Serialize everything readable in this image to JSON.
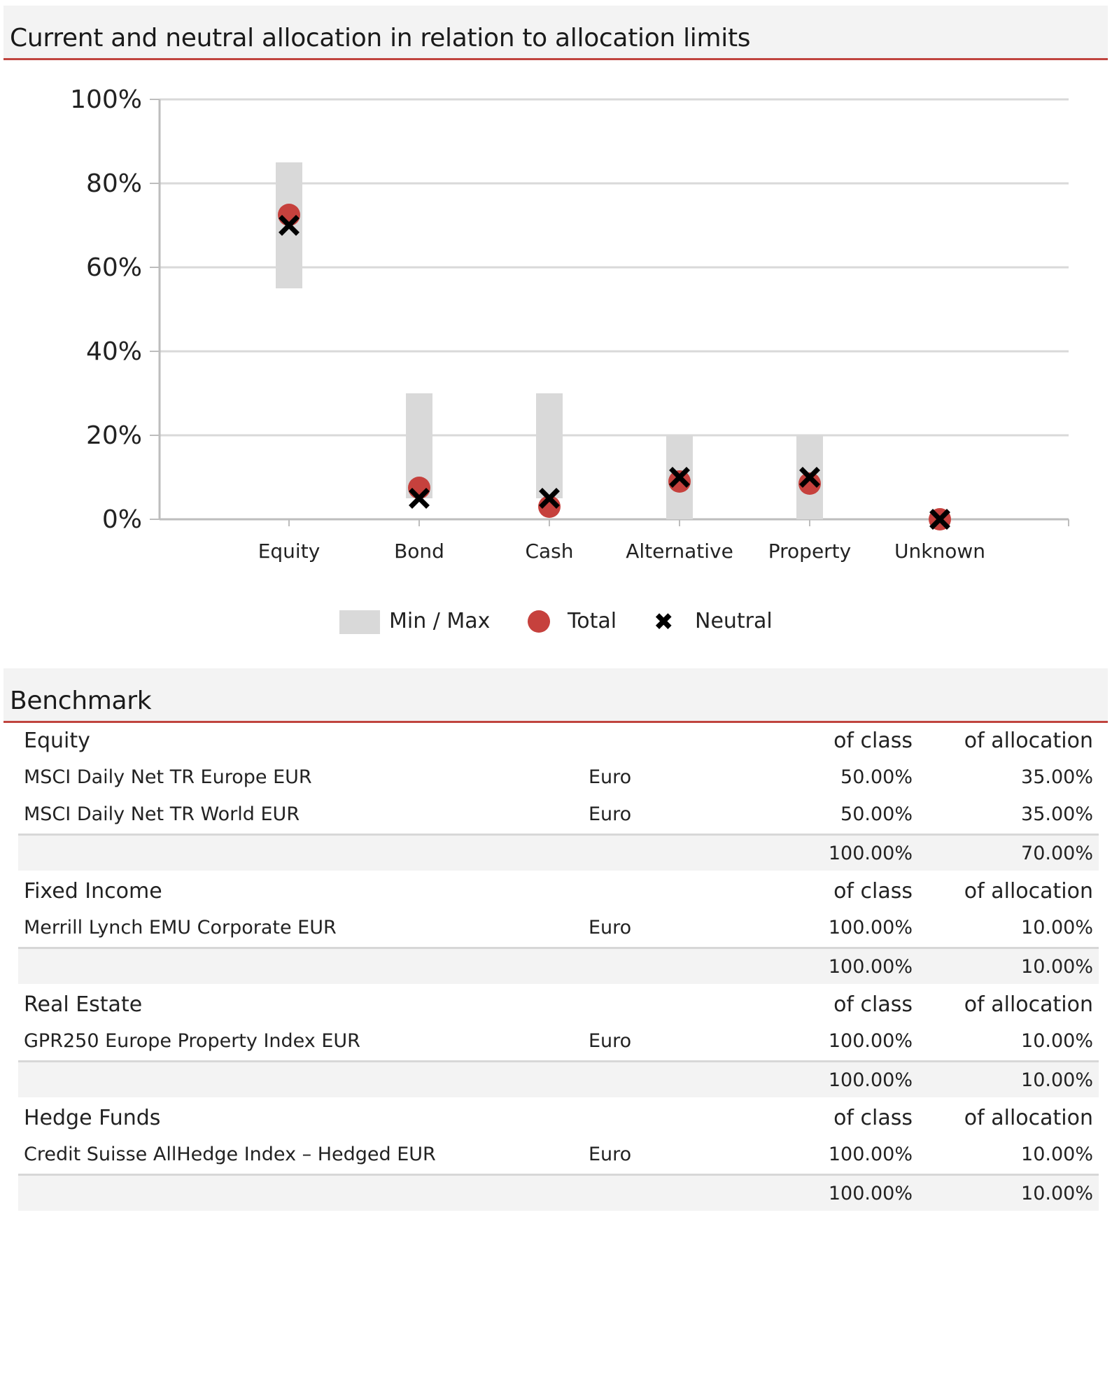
{
  "chart_section": {
    "title": "Current and neutral allocation in relation to allocation limits"
  },
  "chart_data": {
    "type": "scatter",
    "categories": [
      "Equity",
      "Bond",
      "Cash",
      "Alternative",
      "Property",
      "Unknown"
    ],
    "y_ticks": [
      "0%",
      "20%",
      "40%",
      "60%",
      "80%",
      "100%"
    ],
    "ylim": [
      0,
      100
    ],
    "grid": true,
    "legend_position": "bottom",
    "series": [
      {
        "name": "Min / Max",
        "kind": "range",
        "min": [
          55,
          5,
          5,
          0,
          0,
          null
        ],
        "max": [
          85,
          30,
          30,
          20,
          20,
          null
        ]
      },
      {
        "name": "Total",
        "kind": "dot",
        "values": [
          72.5,
          7.5,
          3,
          9,
          8.5,
          0
        ]
      },
      {
        "name": "Neutral",
        "kind": "cross",
        "values": [
          70,
          5,
          5,
          10,
          10,
          0
        ]
      }
    ],
    "colors": {
      "range": "#d9d9d9",
      "total": "#c6413d",
      "neutral": "#000000",
      "grid": "#d9d9d9",
      "axis": "#bdbdbd"
    }
  },
  "legend": {
    "minmax": "Min / Max",
    "total": "Total",
    "neutral": "Neutral"
  },
  "benchmark": {
    "title": "Benchmark",
    "groups": [
      {
        "name": "Equity",
        "of_class": "of class",
        "of_allocation": "of allocation",
        "rows": [
          {
            "name": "MSCI Daily Net TR Europe EUR",
            "currency": "Euro",
            "class_pct": "50.00%",
            "alloc_pct": "35.00%"
          },
          {
            "name": "MSCI Daily Net TR World EUR",
            "currency": "Euro",
            "class_pct": "50.00%",
            "alloc_pct": "35.00%"
          }
        ],
        "total_class": "100.00%",
        "total_alloc": "70.00%"
      },
      {
        "name": "Fixed Income",
        "of_class": "of class",
        "of_allocation": "of allocation",
        "rows": [
          {
            "name": "Merrill Lynch EMU Corporate EUR",
            "currency": "Euro",
            "class_pct": "100.00%",
            "alloc_pct": "10.00%"
          }
        ],
        "total_class": "100.00%",
        "total_alloc": "10.00%"
      },
      {
        "name": "Real Estate",
        "of_class": "of class",
        "of_allocation": "of allocation",
        "rows": [
          {
            "name": "GPR250 Europe Property Index EUR",
            "currency": "Euro",
            "class_pct": "100.00%",
            "alloc_pct": "10.00%"
          }
        ],
        "total_class": "100.00%",
        "total_alloc": "10.00%"
      },
      {
        "name": "Hedge Funds",
        "of_class": "of class",
        "of_allocation": "of allocation",
        "rows": [
          {
            "name": "Credit Suisse AllHedge Index  – Hedged EUR",
            "currency": "Euro",
            "class_pct": "100.00%",
            "alloc_pct": "10.00%"
          }
        ],
        "total_class": "100.00%",
        "total_alloc": "10.00%"
      }
    ]
  }
}
